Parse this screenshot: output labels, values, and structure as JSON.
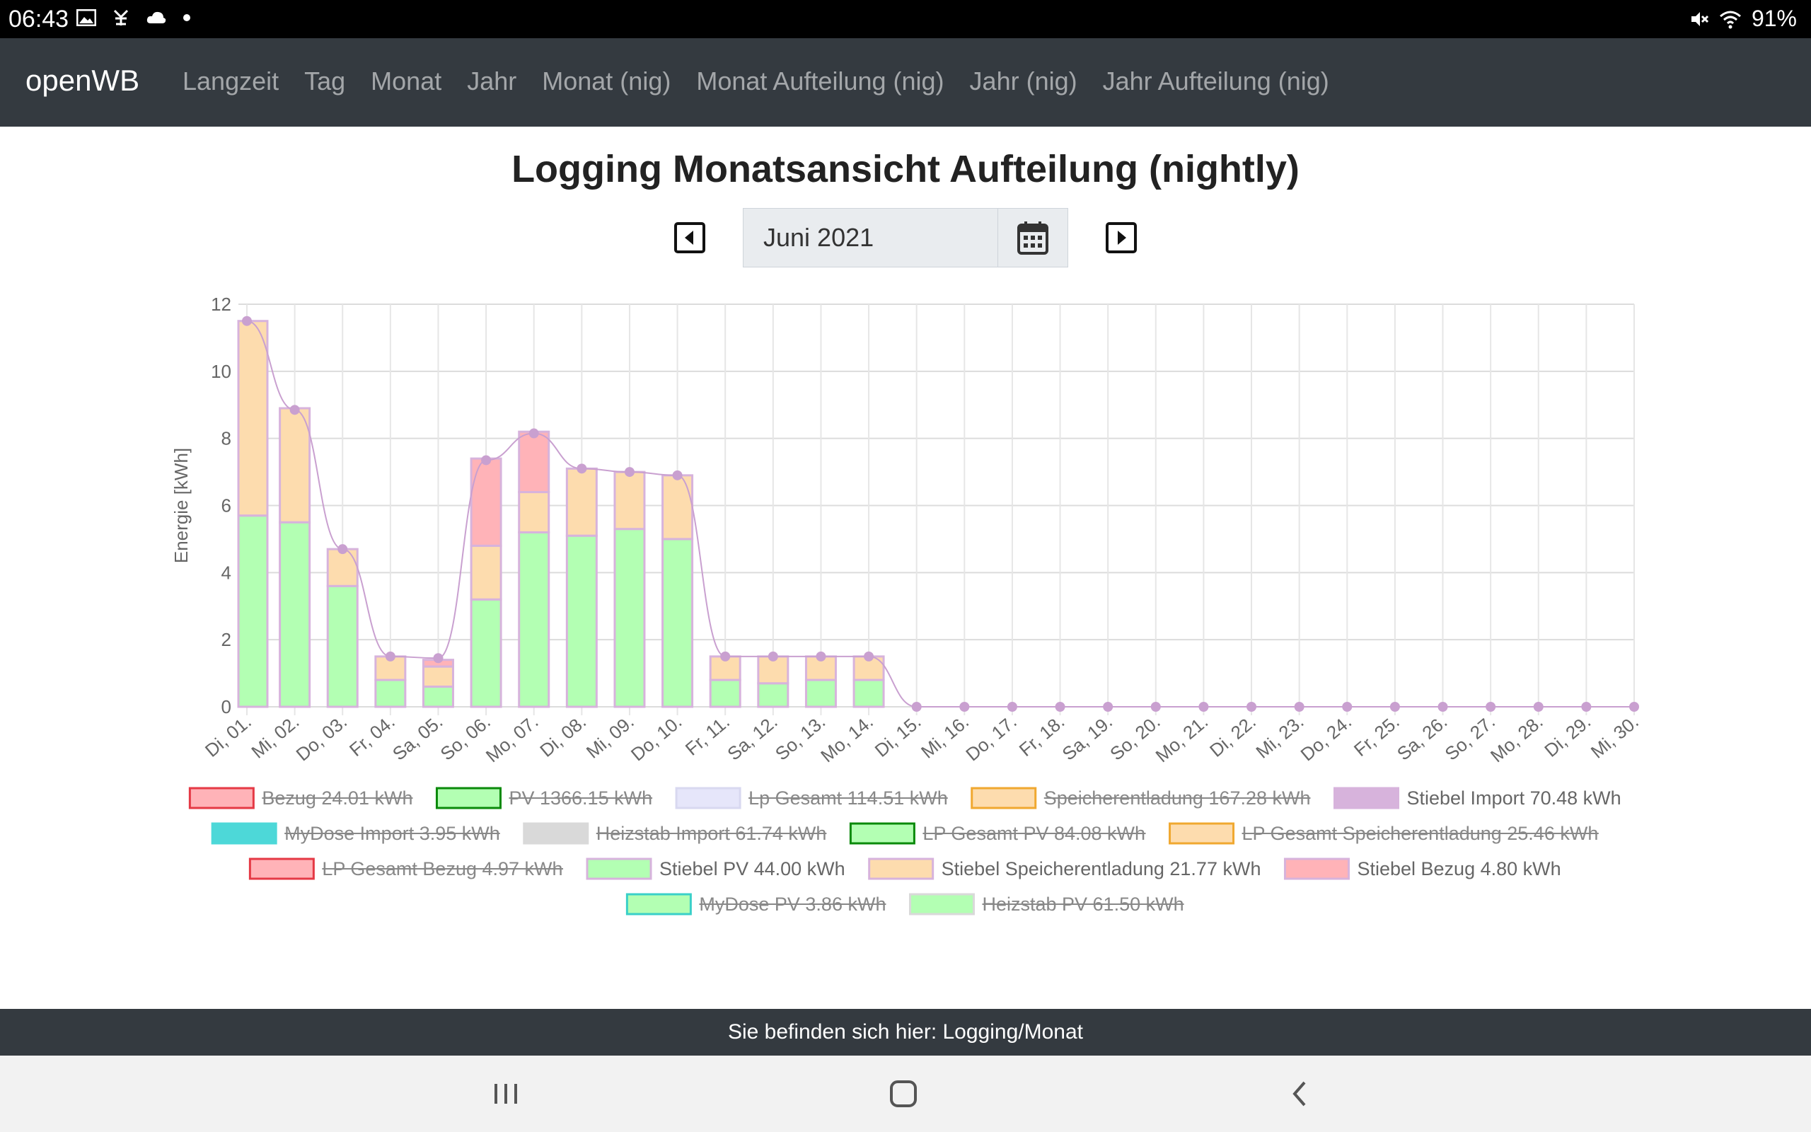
{
  "status_bar": {
    "time": "06:43",
    "battery": "91%",
    "icons_left": [
      "image-icon",
      "debug-icon",
      "cloud-icon",
      "dot-icon"
    ],
    "icons_right": [
      "mute-icon",
      "wifi-icon"
    ]
  },
  "navbar": {
    "brand": "openWB",
    "links": [
      "Langzeit",
      "Tag",
      "Monat",
      "Jahr",
      "Monat (nig)",
      "Monat Aufteilung (nig)",
      "Jahr (nig)",
      "Jahr Aufteilung (nig)"
    ]
  },
  "page": {
    "title": "Logging Monatsansicht Aufteilung (nightly)",
    "date_value": "Juni 2021"
  },
  "chart_data": {
    "type": "bar",
    "ylabel": "Energie [kWh]",
    "ylim": [
      0,
      12
    ],
    "yticks": [
      0,
      2,
      4,
      6,
      8,
      10,
      12
    ],
    "grid": true,
    "categories": [
      "Di, 01.",
      "Mi, 02.",
      "Do, 03.",
      "Fr, 04.",
      "Sa, 05.",
      "So, 06.",
      "Mo, 07.",
      "Di, 08.",
      "Mi, 09.",
      "Do, 10.",
      "Fr, 11.",
      "Sa, 12.",
      "So, 13.",
      "Mo, 14.",
      "Di, 15.",
      "Mi, 16.",
      "Do, 17.",
      "Fr, 18.",
      "Sa, 19.",
      "So, 20.",
      "Mo, 21.",
      "Di, 22.",
      "Mi, 23.",
      "Do, 24.",
      "Fr, 25.",
      "Sa, 26.",
      "So, 27.",
      "Mo, 28.",
      "Di, 29.",
      "Mi, 30."
    ],
    "stack_series": [
      {
        "name": "Stiebel PV 44.00 kWh",
        "color": "#b3ffb3",
        "values": [
          5.7,
          5.5,
          3.6,
          0.8,
          0.6,
          3.2,
          5.2,
          5.1,
          5.3,
          5.0,
          0.8,
          0.7,
          0.8,
          0.8,
          0,
          0,
          0,
          0,
          0,
          0,
          0,
          0,
          0,
          0,
          0,
          0,
          0,
          0,
          0,
          0
        ]
      },
      {
        "name": "Stiebel Speicherentladung 21.77 kWh",
        "color": "#fddcae",
        "values": [
          5.8,
          3.4,
          1.1,
          0.7,
          0.6,
          1.6,
          1.2,
          2.0,
          1.7,
          1.9,
          0.7,
          0.8,
          0.7,
          0.7,
          0,
          0,
          0,
          0,
          0,
          0,
          0,
          0,
          0,
          0,
          0,
          0,
          0,
          0,
          0,
          0
        ]
      },
      {
        "name": "Stiebel Bezug 4.80 kWh",
        "color": "#ffb3b8",
        "values": [
          0,
          0,
          0,
          0,
          0.2,
          2.6,
          1.8,
          0,
          0,
          0,
          0,
          0,
          0,
          0,
          0,
          0,
          0,
          0,
          0,
          0,
          0,
          0,
          0,
          0,
          0,
          0,
          0,
          0,
          0,
          0
        ]
      }
    ],
    "line_series": {
      "name": "Stiebel Import 70.48 kWh",
      "color": "#c9a0d0",
      "values": [
        11.5,
        8.85,
        4.7,
        1.5,
        1.45,
        7.35,
        8.15,
        7.1,
        7.0,
        6.9,
        1.5,
        1.5,
        1.5,
        1.5,
        0,
        0,
        0,
        0,
        0,
        0,
        0,
        0,
        0,
        0,
        0,
        0,
        0,
        0,
        0,
        0
      ]
    },
    "legend": [
      [
        {
          "label": "Bezug 24.01 kWh",
          "fill": "#ffb3b8",
          "stroke": "#e53945",
          "hidden": true
        },
        {
          "label": "PV 1366.15 kWh",
          "fill": "#b3ffb3",
          "stroke": "#0a8a0a",
          "hidden": true
        },
        {
          "label": "Lp Gesamt 114.51 kWh",
          "fill": "#e6e6fa",
          "stroke": "#d8d8f0",
          "hidden": true
        },
        {
          "label": "Speicherentladung 167.28 kWh",
          "fill": "#fddcae",
          "stroke": "#f0a830",
          "hidden": true
        },
        {
          "label": "Stiebel Import 70.48 kWh",
          "fill": "#d7b3dc",
          "stroke": "#d7b3dc",
          "hidden": false
        }
      ],
      [
        {
          "label": "MyDose Import 3.95 kWh",
          "fill": "#4dd8d8",
          "stroke": "#4dd8d8",
          "hidden": true
        },
        {
          "label": "Heizstab Import 61.74 kWh",
          "fill": "#d9d9d9",
          "stroke": "#d9d9d9",
          "hidden": true
        },
        {
          "label": "LP Gesamt PV 84.08 kWh",
          "fill": "#b3ffb3",
          "stroke": "#0a8a0a",
          "hidden": true
        },
        {
          "label": "LP Gesamt Speicherentladung 25.46 kWh",
          "fill": "#fddcae",
          "stroke": "#f0a830",
          "hidden": true
        }
      ],
      [
        {
          "label": "LP Gesamt Bezug 4.97 kWh",
          "fill": "#ffb3b8",
          "stroke": "#e53945",
          "hidden": true
        },
        {
          "label": "Stiebel PV 44.00 kWh",
          "fill": "#b3ffb3",
          "stroke": "#d7b3dc",
          "hidden": false
        },
        {
          "label": "Stiebel Speicherentladung 21.77 kWh",
          "fill": "#fddcae",
          "stroke": "#d7b3dc",
          "hidden": false
        },
        {
          "label": "Stiebel Bezug 4.80 kWh",
          "fill": "#ffb3b8",
          "stroke": "#d7b3dc",
          "hidden": false
        }
      ],
      [
        {
          "label": "MyDose PV 3.86 kWh",
          "fill": "#b3ffb3",
          "stroke": "#3ad0c8",
          "hidden": true
        },
        {
          "label": "Heizstab PV 61.50 kWh",
          "fill": "#b3ffb3",
          "stroke": "#d9d9d9",
          "hidden": true
        }
      ]
    ]
  },
  "footer": {
    "text": "Sie befinden sich hier: Logging/Monat"
  },
  "system_nav": [
    "recent-apps-icon",
    "home-icon",
    "back-icon"
  ]
}
